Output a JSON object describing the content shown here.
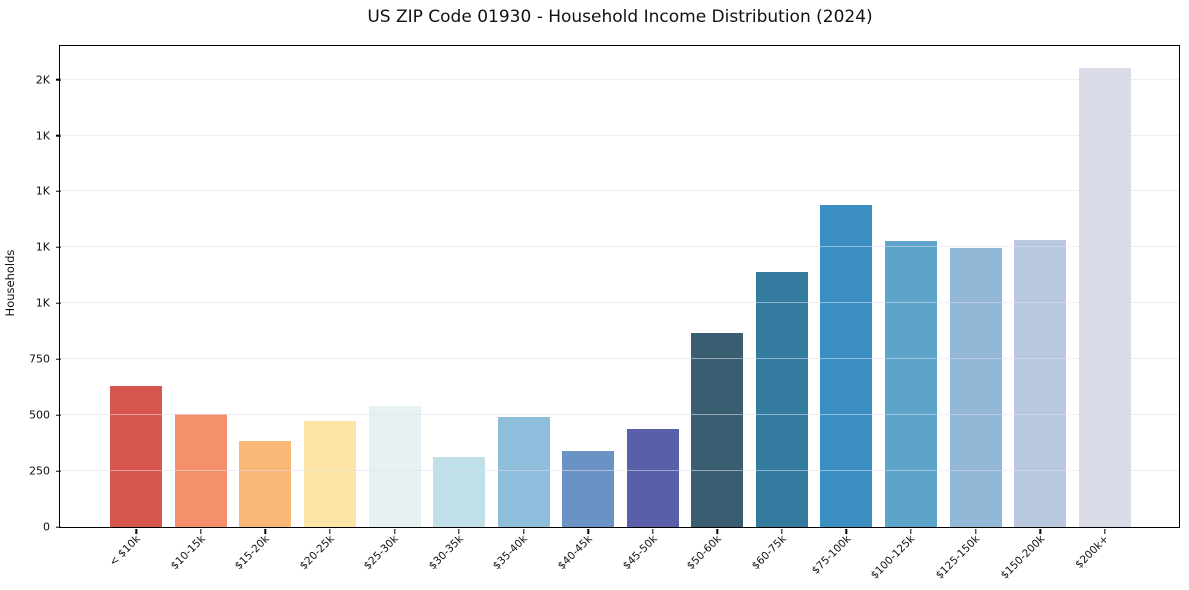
{
  "chart_data": {
    "type": "bar",
    "title": "US ZIP Code 01930 - Household Income Distribution (2024)",
    "xlabel": "",
    "ylabel": "Households",
    "categories": [
      "< $10k",
      "$10-15k",
      "$15-20k",
      "$20-25k",
      "$25-30k",
      "$30-35k",
      "$35-40k",
      "$40-45k",
      "$45-50k",
      "$50-60k",
      "$60-75k",
      "$75-100k",
      "$100-125k",
      "$125-150k",
      "$150-200k",
      "$200k+"
    ],
    "values": [
      630,
      505,
      385,
      475,
      540,
      315,
      490,
      340,
      440,
      865,
      1140,
      1440,
      1280,
      1245,
      1285,
      2050
    ],
    "bar_colors": [
      "#d6564e",
      "#f5906c",
      "#fab878",
      "#fce5a6",
      "#e7f1f4",
      "#bfdfe9",
      "#8fbedd",
      "#6b92c4",
      "#5a5fa9",
      "#395e72",
      "#337b9f",
      "#3a8ec1",
      "#5ca4c9",
      "#93b7d6",
      "#b8c9df",
      "#dadce8"
    ],
    "ylim": [
      0,
      2150
    ],
    "yticks": [
      {
        "value": 0,
        "label": "0"
      },
      {
        "value": 250,
        "label": "250"
      },
      {
        "value": 500,
        "label": "500"
      },
      {
        "value": 750,
        "label": "750"
      },
      {
        "value": 1000,
        "label": "1K"
      },
      {
        "value": 1250,
        "label": "1K"
      },
      {
        "value": 1500,
        "label": "1K"
      },
      {
        "value": 1750,
        "label": "1K"
      },
      {
        "value": 2000,
        "label": "2K"
      }
    ],
    "grid": true,
    "legend_position": "none",
    "xtick_rotation": 45
  },
  "colors": {
    "background": "#ffffff",
    "grid": "#e9e9f2",
    "spine": "#000000",
    "text": "#111111"
  }
}
